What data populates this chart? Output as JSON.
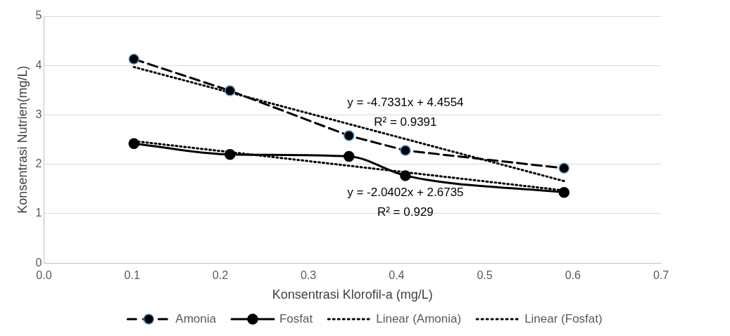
{
  "chart_data": {
    "type": "line",
    "xlabel": "Konsentrasi Klorofil-a (mg/L)",
    "ylabel": "Konsentrasi Nutrien(mg/L)",
    "xlim": [
      0,
      0.7
    ],
    "xticks": [
      {
        "value": 0,
        "label": "0.0"
      },
      0.1,
      0.2,
      0.3,
      0.4,
      0.5,
      0.6,
      0.7
    ],
    "ylim": [
      0,
      5
    ],
    "yticks": [
      0,
      1,
      2,
      3,
      4,
      5
    ],
    "grid": "y",
    "legend": "bottom",
    "series": [
      {
        "name": "Amonia",
        "color": "#000000",
        "line_style": "dashed",
        "marker": "circle",
        "x": [
          0.102,
          0.211,
          0.346,
          0.41,
          0.59
        ],
        "values": [
          4.13,
          3.49,
          2.58,
          2.28,
          1.92
        ]
      },
      {
        "name": "Fosfat",
        "color": "#000000",
        "line_style": "solid",
        "marker": "circle",
        "x": [
          0.102,
          0.211,
          0.346,
          0.41,
          0.59
        ],
        "values": [
          2.42,
          2.2,
          2.16,
          1.77,
          1.43
        ]
      },
      {
        "name": "Linear (Amonia)",
        "color": "#000000",
        "line_style": "dotted",
        "marker": "none",
        "x": [
          0.102,
          0.59
        ],
        "values": [
          3.97,
          1.66
        ]
      },
      {
        "name": "Linear (Fosfat)",
        "color": "#000000",
        "line_style": "dotted",
        "marker": "none",
        "x": [
          0.102,
          0.59
        ],
        "values": [
          2.47,
          1.47
        ]
      }
    ],
    "annotations": [
      "y = -4.7331x + 4.4554\nR² = 0.9391",
      "y = -2.0402x + 2.6735\nR² = 0.929"
    ]
  }
}
